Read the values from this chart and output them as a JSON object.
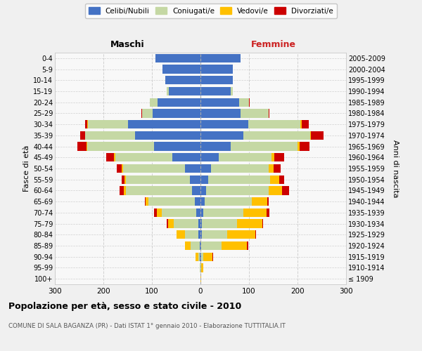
{
  "age_groups": [
    "100+",
    "95-99",
    "90-94",
    "85-89",
    "80-84",
    "75-79",
    "70-74",
    "65-69",
    "60-64",
    "55-59",
    "50-54",
    "45-49",
    "40-44",
    "35-39",
    "30-34",
    "25-29",
    "20-24",
    "15-19",
    "10-14",
    "5-9",
    "0-4"
  ],
  "birth_years": [
    "≤ 1909",
    "1910-1914",
    "1915-1919",
    "1920-1924",
    "1925-1929",
    "1930-1934",
    "1935-1939",
    "1940-1944",
    "1945-1949",
    "1950-1954",
    "1955-1959",
    "1960-1964",
    "1965-1969",
    "1970-1974",
    "1975-1979",
    "1980-1984",
    "1985-1989",
    "1990-1994",
    "1995-1999",
    "2000-2004",
    "2005-2009"
  ],
  "colors": {
    "celibi": "#4472c4",
    "coniugati": "#c5d8a4",
    "vedovi": "#ffc000",
    "divorziati": "#cc0000"
  },
  "maschi": {
    "celibi": [
      0,
      0,
      1,
      2,
      4,
      5,
      8,
      12,
      18,
      22,
      32,
      58,
      95,
      135,
      150,
      98,
      88,
      65,
      72,
      78,
      93
    ],
    "coniugati": [
      0,
      1,
      4,
      18,
      28,
      50,
      72,
      95,
      135,
      132,
      128,
      118,
      138,
      102,
      82,
      22,
      16,
      5,
      0,
      0,
      0
    ],
    "vedovi": [
      0,
      1,
      5,
      12,
      18,
      12,
      10,
      6,
      5,
      3,
      2,
      2,
      2,
      1,
      1,
      0,
      0,
      0,
      0,
      0,
      0
    ],
    "divorziati": [
      0,
      0,
      0,
      0,
      0,
      2,
      6,
      2,
      8,
      5,
      10,
      16,
      18,
      10,
      5,
      2,
      0,
      0,
      0,
      0,
      0
    ]
  },
  "femmine": {
    "celibi": [
      0,
      0,
      1,
      2,
      3,
      3,
      6,
      8,
      12,
      16,
      22,
      38,
      62,
      88,
      98,
      82,
      80,
      62,
      66,
      66,
      82
    ],
    "coniugati": [
      0,
      2,
      5,
      42,
      52,
      72,
      82,
      98,
      128,
      128,
      118,
      108,
      138,
      138,
      108,
      58,
      20,
      5,
      0,
      0,
      0
    ],
    "vedovi": [
      1,
      4,
      18,
      52,
      58,
      52,
      48,
      32,
      28,
      18,
      10,
      6,
      5,
      2,
      2,
      0,
      0,
      0,
      0,
      0,
      0
    ],
    "divorziati": [
      0,
      0,
      2,
      2,
      2,
      2,
      6,
      2,
      15,
      10,
      15,
      20,
      20,
      25,
      15,
      2,
      2,
      0,
      0,
      0,
      0
    ]
  },
  "title": "Popolazione per età, sesso e stato civile - 2010",
  "subtitle": "COMUNE DI SALA BAGANZA (PR) - Dati ISTAT 1° gennaio 2010 - Elaborazione TUTTITALIA.IT",
  "maschi_label": "Maschi",
  "femmine_label": "Femmine",
  "ylabel_left": "Fasce di età",
  "ylabel_right": "Anni di nascita",
  "xlim": 300,
  "legend_labels": [
    "Celibi/Nubili",
    "Coniugati/e",
    "Vedovi/e",
    "Divorziati/e"
  ],
  "bg_color": "#f0f0f0",
  "plot_bg": "#f8f8f8",
  "grid_color": "#cccccc",
  "femmine_color": "#cc2222"
}
